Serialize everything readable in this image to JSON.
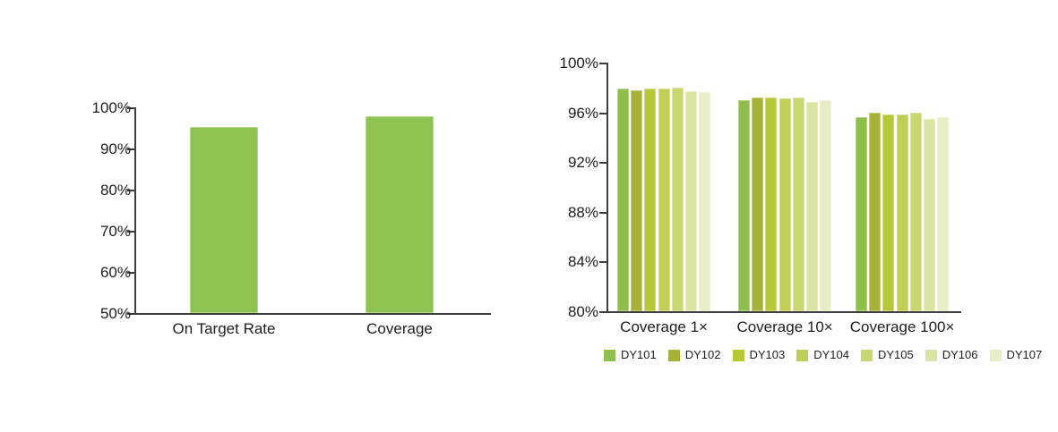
{
  "figure": {
    "background": "#ffffff",
    "axis_color": "#3d3d3d",
    "text_color": "#1e1e1c"
  },
  "chart_data": [
    {
      "id": "left-summary-chart",
      "type": "bar",
      "title": "",
      "categories": [
        "On Target Rate",
        "Coverage"
      ],
      "values": [
        95.2,
        97.8
      ],
      "xlabel": "",
      "ylabel": "",
      "ylim": [
        50,
        100
      ],
      "ytick_values": [
        100,
        90,
        80,
        70,
        60,
        50
      ],
      "ytick_labels": [
        "100%",
        "90%",
        "80%",
        "70%",
        "60%",
        "50%"
      ],
      "bar_color": "#8EC351",
      "grid": false,
      "legend_position": "none"
    },
    {
      "id": "right-grouped-chart",
      "type": "bar",
      "title": "",
      "categories": [
        "Coverage 1×",
        "Coverage 10×",
        "Coverage 100×"
      ],
      "series": [
        {
          "name": "DY101",
          "color": "#8FBE4D",
          "values": [
            97.9,
            97.0,
            95.6
          ]
        },
        {
          "name": "DY102",
          "color": "#A7B138",
          "values": [
            97.8,
            97.2,
            96.0
          ]
        },
        {
          "name": "DY103",
          "color": "#B7C837",
          "values": [
            97.9,
            97.2,
            95.8
          ]
        },
        {
          "name": "DY104",
          "color": "#C1CE54",
          "values": [
            97.9,
            97.1,
            95.8
          ]
        },
        {
          "name": "DY105",
          "color": "#CAD66F",
          "values": [
            98.0,
            97.2,
            96.0
          ]
        },
        {
          "name": "DY106",
          "color": "#DCE4A1",
          "values": [
            97.7,
            96.8,
            95.5
          ]
        },
        {
          "name": "DY107",
          "color": "#E9EDC5",
          "values": [
            97.6,
            97.0,
            95.6
          ]
        }
      ],
      "xlabel": "",
      "ylabel": "",
      "ylim": [
        80,
        100
      ],
      "ytick_values": [
        100,
        96,
        92,
        88,
        84,
        80
      ],
      "ytick_labels": [
        "100%",
        "96%",
        "92%",
        "88%",
        "84%",
        "80%"
      ],
      "grid": false,
      "legend_position": "bottom",
      "legend_labels": [
        "DY101",
        "DY102",
        "DY103",
        "DY104",
        "DY105",
        "DY106",
        "DY107"
      ]
    }
  ]
}
